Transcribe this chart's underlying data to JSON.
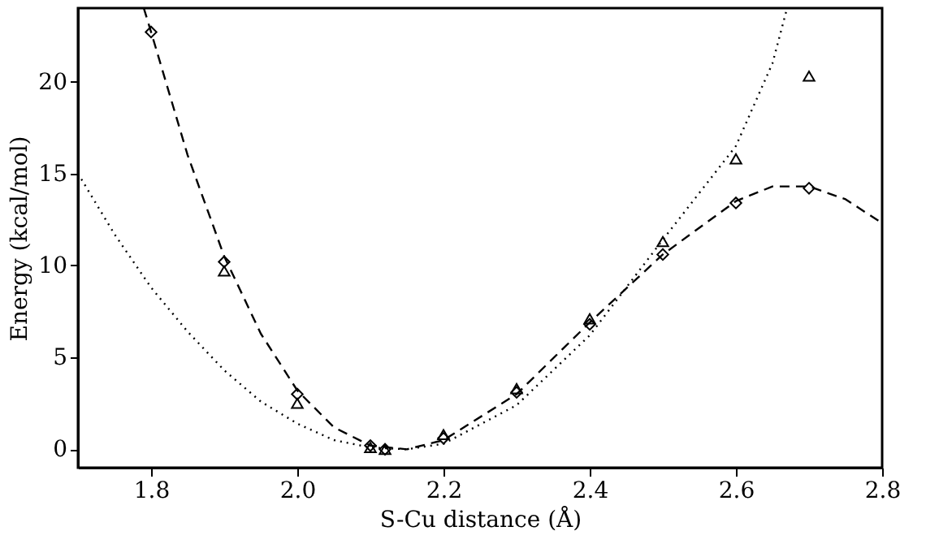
{
  "chart_data": {
    "type": "scatter",
    "xlabel": "S-Cu distance (Å)",
    "ylabel": "Energy (kcal/mol)",
    "xlim": [
      1.7,
      2.8
    ],
    "ylim": [
      -1,
      24
    ],
    "xticks": [
      1.8,
      {
        "value": 2.0,
        "label": "2.0"
      },
      2.2,
      2.4,
      2.6,
      2.8
    ],
    "yticks": [
      0,
      5,
      10,
      15,
      20
    ],
    "grid": false,
    "series": [
      {
        "type": "line",
        "line_style": "dashed",
        "marker": "none",
        "color": "#000000",
        "x": [
          1.79,
          1.8,
          1.85,
          1.9,
          1.95,
          2.0,
          2.05,
          2.1,
          2.15,
          2.2,
          2.3,
          2.4,
          2.5,
          2.6,
          2.65,
          2.7,
          2.75,
          2.8
        ],
        "values": [
          24,
          22.7,
          16,
          10.5,
          6.3,
          3.2,
          1.2,
          0.2,
          0,
          0.5,
          3.0,
          6.9,
          10.6,
          13.5,
          14.3,
          14.3,
          13.6,
          12.3
        ]
      },
      {
        "type": "line",
        "line_style": "dotted",
        "marker": "none",
        "color": "#000000",
        "x": [
          1.7,
          1.75,
          1.8,
          1.85,
          1.9,
          1.95,
          2.0,
          2.05,
          2.1,
          2.15,
          2.2,
          2.3,
          2.4,
          2.5,
          2.6,
          2.65,
          2.67
        ],
        "values": [
          15,
          11.7,
          8.8,
          6.4,
          4.3,
          2.6,
          1.4,
          0.5,
          0.1,
          0,
          0.3,
          2.4,
          6.2,
          11.4,
          16.5,
          21,
          24
        ]
      },
      {
        "marker": "diamond",
        "color": "#000000",
        "x": [
          1.8,
          1.9,
          2.0,
          2.1,
          2.12,
          2.2,
          2.3,
          2.4,
          2.5,
          2.6,
          2.7
        ],
        "values": [
          22.7,
          10.2,
          3.0,
          0.2,
          0.0,
          0.6,
          3.1,
          6.8,
          10.6,
          13.4,
          14.2
        ]
      },
      {
        "marker": "triangle",
        "color": "#000000",
        "x": [
          1.9,
          2.0,
          2.1,
          2.12,
          2.2,
          2.3,
          2.4,
          2.5,
          2.6,
          2.7
        ],
        "values": [
          9.7,
          2.5,
          0.1,
          0.0,
          0.8,
          3.3,
          7.1,
          11.3,
          15.8,
          20.3
        ]
      }
    ]
  }
}
